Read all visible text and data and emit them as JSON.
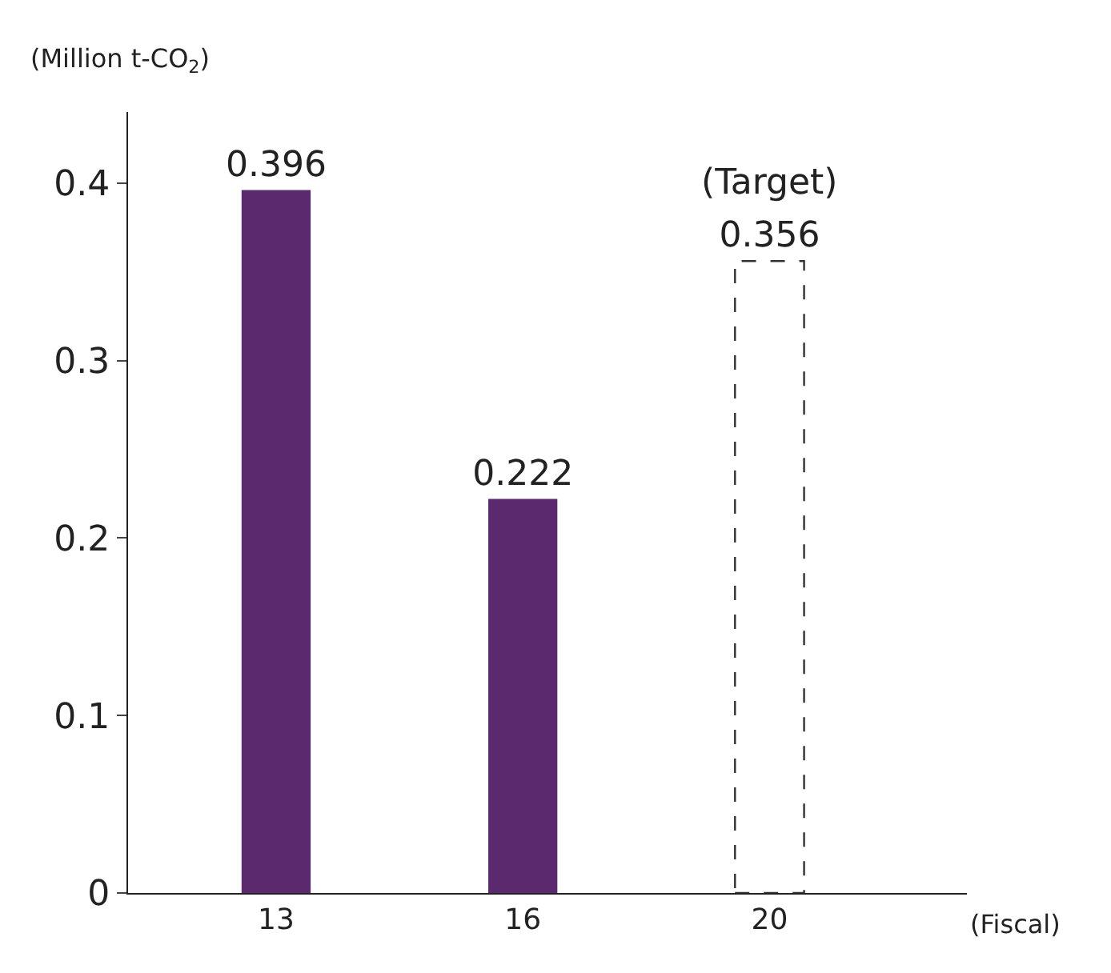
{
  "chart_data": {
    "type": "bar",
    "ylabel": "(Million t-CO$_{2}$)",
    "xlabel": "(Fiscal)",
    "categories": [
      "13",
      "16",
      "20"
    ],
    "series": [
      {
        "color": "#5b2a6e",
        "values": [
          0.396,
          0.222,
          null
        ]
      },
      {
        "color": "#ffffff",
        "line_style": "dashed",
        "values": [
          null,
          null,
          0.356
        ]
      }
    ],
    "data_labels": true,
    "annotations": [
      {
        "text": "(Target)",
        "x": "20",
        "y": 0.356
      }
    ],
    "ylim": [
      0,
      0.44
    ],
    "yticks": [
      0,
      0.1,
      0.2,
      0.3,
      0.4
    ]
  }
}
